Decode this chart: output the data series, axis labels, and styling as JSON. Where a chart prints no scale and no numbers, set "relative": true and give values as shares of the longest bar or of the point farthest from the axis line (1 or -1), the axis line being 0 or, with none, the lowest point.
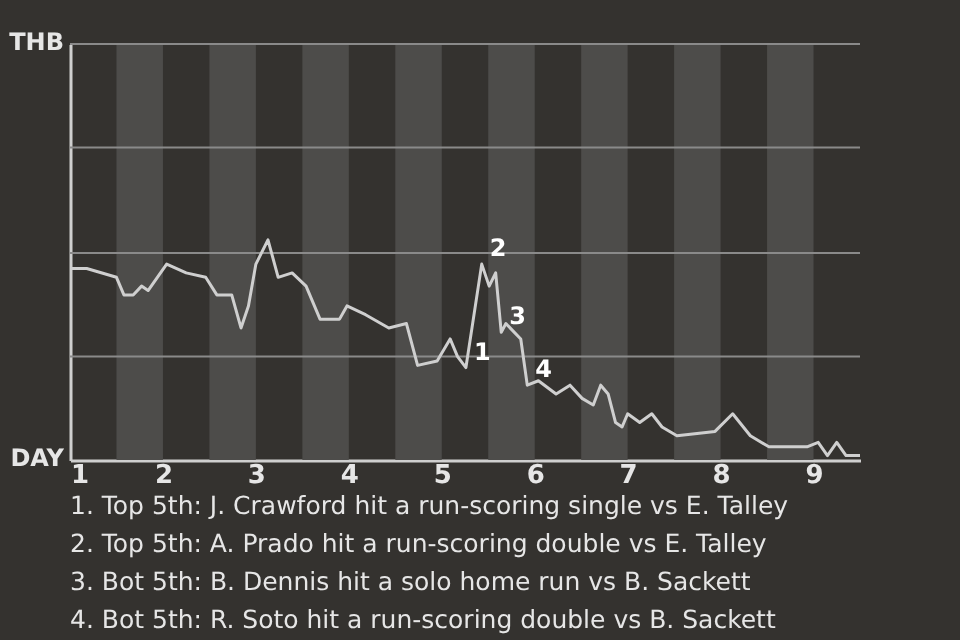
{
  "chart_data": {
    "type": "line",
    "x": [
      1.0,
      1.18,
      1.5,
      1.58,
      1.68,
      1.77,
      1.84,
      2.04,
      2.25,
      2.46,
      2.58,
      2.74,
      2.84,
      2.92,
      3.0,
      3.13,
      3.24,
      3.39,
      3.54,
      3.69,
      3.9,
      3.98,
      4.18,
      4.43,
      4.62,
      4.74,
      4.95,
      5.09,
      5.17,
      5.26,
      5.43,
      5.51,
      5.58,
      5.64,
      5.69,
      5.85,
      5.92,
      6.04,
      6.23,
      6.38,
      6.51,
      6.63,
      6.71,
      6.79,
      6.87,
      6.94,
      7.0,
      7.13,
      7.26,
      7.37,
      7.53,
      7.94,
      8.13,
      8.32,
      8.52,
      8.93,
      9.05,
      9.15,
      9.25,
      9.35,
      9.5
    ],
    "series": [
      {
        "color": "#cfcfcf",
        "values": [
          0.87,
          0.87,
          0.83,
          0.75,
          0.75,
          0.79,
          0.77,
          0.89,
          0.85,
          0.83,
          0.75,
          0.75,
          0.6,
          0.7,
          0.89,
          1,
          0.83,
          0.85,
          0.79,
          0.64,
          0.64,
          0.7,
          0.66,
          0.6,
          0.62,
          0.43,
          0.45,
          0.55,
          0.47,
          0.42,
          0.89,
          0.79,
          0.85,
          0.58,
          0.62,
          0.55,
          0.34,
          0.36,
          0.3,
          0.34,
          0.28,
          0.25,
          0.34,
          0.3,
          0.17,
          0.15,
          0.21,
          0.17,
          0.21,
          0.15,
          0.11,
          0.13,
          0.21,
          0.11,
          0.06,
          0.06,
          0.08,
          0.02,
          0.08,
          0.02,
          0.02
        ]
      }
    ],
    "relative": true,
    "xlim": [
      1,
      9.5
    ],
    "xticks": [
      1,
      2,
      3,
      4,
      5,
      6,
      7,
      8,
      9
    ],
    "ref_lines": [
      {
        "axis": "y",
        "value": 0.47,
        "color": "#8a8a8a"
      },
      {
        "axis": "y",
        "value": 0.94,
        "color": "#8a8a8a"
      },
      {
        "axis": "y",
        "value": 1.42,
        "color": "#8a8a8a"
      },
      {
        "axis": "y",
        "value": 1.89,
        "color": "#8a8a8a"
      }
    ],
    "marker": "none",
    "bands": [
      {
        "axis": "x",
        "from": 1.5,
        "to": 2,
        "color": "#4d4c4a"
      },
      {
        "axis": "x",
        "from": 2.5,
        "to": 3,
        "color": "#4d4c4a"
      },
      {
        "axis": "x",
        "from": 3.5,
        "to": 4,
        "color": "#4d4c4a"
      },
      {
        "axis": "x",
        "from": 4.5,
        "to": 5,
        "color": "#4d4c4a"
      },
      {
        "axis": "x",
        "from": 5.5,
        "to": 6,
        "color": "#4d4c4a"
      },
      {
        "axis": "x",
        "from": 6.5,
        "to": 7,
        "color": "#4d4c4a"
      },
      {
        "axis": "x",
        "from": 7.5,
        "to": 8,
        "color": "#4d4c4a"
      },
      {
        "axis": "x",
        "from": 8.5,
        "to": 9,
        "color": "#4d4c4a"
      }
    ],
    "annotations": [
      "THB",
      "DAY",
      {
        "text": "1",
        "x": 5.26,
        "y": 0.42
      },
      {
        "text": "2",
        "x": 5.43,
        "y": 0.89
      },
      {
        "text": "3",
        "x": 5.64,
        "y": 0.58
      },
      {
        "text": "4",
        "x": 5.92,
        "y": 0.34
      },
      "1. Top 5th: J. Crawford hit a run-scoring single vs E. Talley",
      "2. Top 5th: A. Prado hit a run-scoring double vs E. Talley",
      "3. Bot 5th: B. Dennis hit a solo home run vs B. Sackett",
      "4. Bot 5th: R. Soto hit a run-scoring double vs B. Sackett"
    ]
  }
}
